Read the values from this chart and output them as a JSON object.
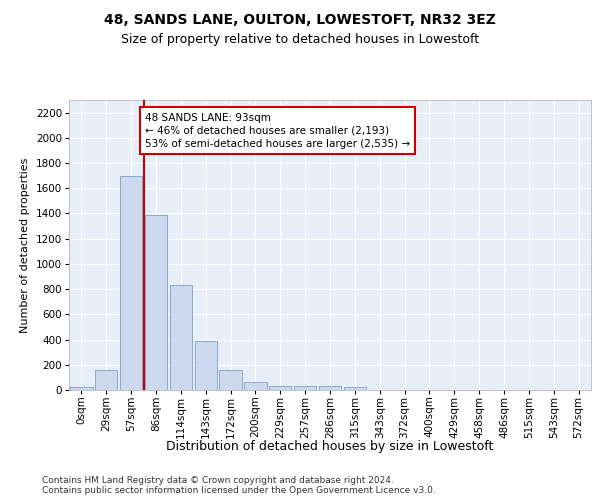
{
  "title1": "48, SANDS LANE, OULTON, LOWESTOFT, NR32 3EZ",
  "title2": "Size of property relative to detached houses in Lowestoft",
  "xlabel": "Distribution of detached houses by size in Lowestoft",
  "ylabel": "Number of detached properties",
  "bar_values": [
    20,
    155,
    1700,
    1390,
    835,
    385,
    160,
    60,
    35,
    30,
    28,
    20,
    0,
    0,
    0,
    0,
    0,
    0,
    0,
    0,
    0
  ],
  "bar_labels": [
    "0sqm",
    "29sqm",
    "57sqm",
    "86sqm",
    "114sqm",
    "143sqm",
    "172sqm",
    "200sqm",
    "229sqm",
    "257sqm",
    "286sqm",
    "315sqm",
    "343sqm",
    "372sqm",
    "400sqm",
    "429sqm",
    "458sqm",
    "486sqm",
    "515sqm",
    "543sqm",
    "572sqm"
  ],
  "bar_color": "#ccd9ee",
  "bar_edge_color": "#7aa0cc",
  "vline_color": "#cc0000",
  "annotation_text": "48 SANDS LANE: 93sqm\n← 46% of detached houses are smaller (2,193)\n53% of semi-detached houses are larger (2,535) →",
  "annotation_box_color": "#ffffff",
  "annotation_box_edge": "#cc0000",
  "ylim": [
    0,
    2300
  ],
  "yticks": [
    0,
    200,
    400,
    600,
    800,
    1000,
    1200,
    1400,
    1600,
    1800,
    2000,
    2200
  ],
  "bg_color": "#e8eef8",
  "footer_text": "Contains HM Land Registry data © Crown copyright and database right 2024.\nContains public sector information licensed under the Open Government Licence v3.0.",
  "title1_fontsize": 10,
  "title2_fontsize": 9,
  "xlabel_fontsize": 9,
  "ylabel_fontsize": 8,
  "tick_fontsize": 7.5,
  "annotation_fontsize": 7.5,
  "footer_fontsize": 6.5
}
